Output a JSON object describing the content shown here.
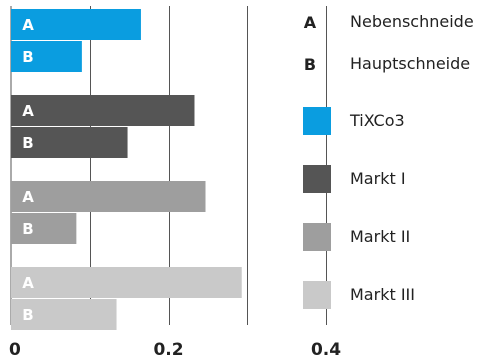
{
  "chart_data": {
    "type": "bar",
    "orientation": "horizontal",
    "xlim": [
      0,
      0.4
    ],
    "x_ticks": [
      "0",
      "0.2",
      "0.4"
    ],
    "gridlines": true,
    "groups": [
      {
        "name": "TiXCo3",
        "color": "#0a9de0",
        "values": {
          "A": 0.165,
          "B": 0.09
        }
      },
      {
        "name": "Markt I",
        "color": "#555555",
        "values": {
          "A": 0.233,
          "B": 0.148
        }
      },
      {
        "name": "Markt II",
        "color": "#9e9e9e",
        "values": {
          "A": 0.247,
          "B": 0.083
        }
      },
      {
        "name": "Markt III",
        "color": "#c9c9c9",
        "values": {
          "A": 0.293,
          "B": 0.134
        }
      }
    ],
    "bar_keys": [
      "A",
      "B"
    ],
    "legend": {
      "position": "right",
      "keys": [
        {
          "key": "A",
          "label": "Nebenschneide"
        },
        {
          "key": "B",
          "label": "Hauptschneide"
        }
      ],
      "series": [
        "TiXCo3",
        "Markt I",
        "Markt II",
        "Markt III"
      ]
    }
  }
}
